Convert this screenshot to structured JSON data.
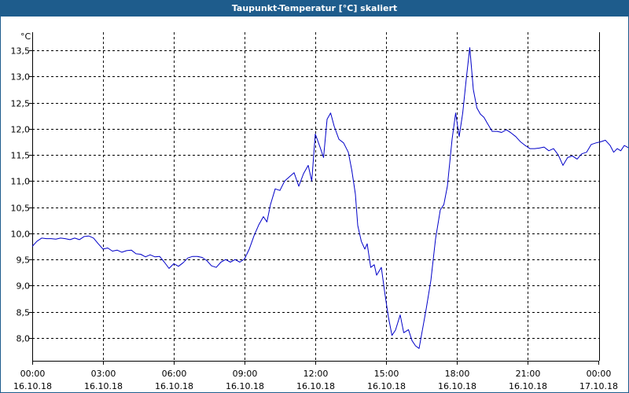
{
  "window": {
    "title": "Taupunkt-Temperatur [°C] skaliert",
    "title_bar_color": "#1e5c8c"
  },
  "chart_data": {
    "type": "line",
    "title": "Taupunkt-Temperatur [°C] skaliert",
    "ylabel": "°C",
    "xlabel": "",
    "ylim": [
      7.6,
      14.0
    ],
    "xlim": [
      "2018-10-16T00:00",
      "2018-10-17T00:00"
    ],
    "grid": true,
    "grid_style": "dashed",
    "line_color": "#0000c8",
    "yticks": [
      {
        "value": 8.0,
        "label": "8,0"
      },
      {
        "value": 8.5,
        "label": "8,5"
      },
      {
        "value": 9.0,
        "label": "9,0"
      },
      {
        "value": 9.5,
        "label": "9,5"
      },
      {
        "value": 10.0,
        "label": "10,0"
      },
      {
        "value": 10.5,
        "label": "10,5"
      },
      {
        "value": 11.0,
        "label": "11,0"
      },
      {
        "value": 11.5,
        "label": "11,5"
      },
      {
        "value": 12.0,
        "label": "12,0"
      },
      {
        "value": 12.5,
        "label": "12,5"
      },
      {
        "value": 13.0,
        "label": "13,0"
      },
      {
        "value": 13.5,
        "label": "13,5"
      }
    ],
    "xticks": [
      {
        "time": "00:00",
        "date": "16.10.18"
      },
      {
        "time": "03:00",
        "date": "16.10.18"
      },
      {
        "time": "06:00",
        "date": "16.10.18"
      },
      {
        "time": "09:00",
        "date": "16.10.18"
      },
      {
        "time": "12:00",
        "date": "16.10.18"
      },
      {
        "time": "15:00",
        "date": "16.10.18"
      },
      {
        "time": "18:00",
        "date": "16.10.18"
      },
      {
        "time": "21:00",
        "date": "16.10.18"
      },
      {
        "time": "00:00",
        "date": "17.10.18"
      }
    ],
    "series": [
      {
        "x_unit": "hours since 16.10.18 00:00",
        "points": [
          [
            0.0,
            9.75
          ],
          [
            0.2,
            9.85
          ],
          [
            0.4,
            9.91
          ],
          [
            0.6,
            9.9
          ],
          [
            0.8,
            9.9
          ],
          [
            1.0,
            9.89
          ],
          [
            1.2,
            9.91
          ],
          [
            1.4,
            9.9
          ],
          [
            1.6,
            9.88
          ],
          [
            1.8,
            9.91
          ],
          [
            2.0,
            9.88
          ],
          [
            2.2,
            9.94
          ],
          [
            2.4,
            9.95
          ],
          [
            2.6,
            9.91
          ],
          [
            2.8,
            9.8
          ],
          [
            3.0,
            9.7
          ],
          [
            3.2,
            9.72
          ],
          [
            3.4,
            9.66
          ],
          [
            3.6,
            9.68
          ],
          [
            3.8,
            9.64
          ],
          [
            4.0,
            9.67
          ],
          [
            4.2,
            9.68
          ],
          [
            4.4,
            9.61
          ],
          [
            4.6,
            9.6
          ],
          [
            4.8,
            9.55
          ],
          [
            5.0,
            9.59
          ],
          [
            5.2,
            9.55
          ],
          [
            5.4,
            9.56
          ],
          [
            5.6,
            9.45
          ],
          [
            5.8,
            9.33
          ],
          [
            6.0,
            9.42
          ],
          [
            6.2,
            9.37
          ],
          [
            6.4,
            9.44
          ],
          [
            6.6,
            9.53
          ],
          [
            6.8,
            9.56
          ],
          [
            7.0,
            9.56
          ],
          [
            7.2,
            9.54
          ],
          [
            7.4,
            9.48
          ],
          [
            7.6,
            9.38
          ],
          [
            7.8,
            9.35
          ],
          [
            8.0,
            9.45
          ],
          [
            8.2,
            9.5
          ],
          [
            8.4,
            9.45
          ],
          [
            8.6,
            9.5
          ],
          [
            8.8,
            9.45
          ],
          [
            9.0,
            9.51
          ],
          [
            9.2,
            9.7
          ],
          [
            9.4,
            9.95
          ],
          [
            9.6,
            10.16
          ],
          [
            9.8,
            10.32
          ],
          [
            9.95,
            10.22
          ],
          [
            10.1,
            10.55
          ],
          [
            10.3,
            10.85
          ],
          [
            10.5,
            10.82
          ],
          [
            10.7,
            11.0
          ],
          [
            10.9,
            11.08
          ],
          [
            11.1,
            11.16
          ],
          [
            11.3,
            10.9
          ],
          [
            11.5,
            11.14
          ],
          [
            11.7,
            11.3
          ],
          [
            11.85,
            11.0
          ],
          [
            12.0,
            11.9
          ],
          [
            12.2,
            11.65
          ],
          [
            12.35,
            11.45
          ],
          [
            12.5,
            12.18
          ],
          [
            12.65,
            12.3
          ],
          [
            12.8,
            12.05
          ],
          [
            13.0,
            11.8
          ],
          [
            13.2,
            11.73
          ],
          [
            13.4,
            11.55
          ],
          [
            13.55,
            11.2
          ],
          [
            13.7,
            10.75
          ],
          [
            13.8,
            10.15
          ],
          [
            13.95,
            9.85
          ],
          [
            14.1,
            9.7
          ],
          [
            14.2,
            9.8
          ],
          [
            14.35,
            9.35
          ],
          [
            14.5,
            9.4
          ],
          [
            14.6,
            9.2
          ],
          [
            14.8,
            9.35
          ],
          [
            14.95,
            8.85
          ],
          [
            15.1,
            8.4
          ],
          [
            15.25,
            8.05
          ],
          [
            15.4,
            8.15
          ],
          [
            15.6,
            8.44
          ],
          [
            15.75,
            8.1
          ],
          [
            15.95,
            8.16
          ],
          [
            16.1,
            7.95
          ],
          [
            16.25,
            7.85
          ],
          [
            16.4,
            7.8
          ],
          [
            16.5,
            8.05
          ],
          [
            16.7,
            8.55
          ],
          [
            16.9,
            9.1
          ],
          [
            17.1,
            9.9
          ],
          [
            17.3,
            10.45
          ],
          [
            17.45,
            10.55
          ],
          [
            17.6,
            10.9
          ],
          [
            17.8,
            11.8
          ],
          [
            17.95,
            12.3
          ],
          [
            18.1,
            11.85
          ],
          [
            18.25,
            12.3
          ],
          [
            18.4,
            12.95
          ],
          [
            18.55,
            13.55
          ],
          [
            18.7,
            12.75
          ],
          [
            18.85,
            12.4
          ],
          [
            19.0,
            12.28
          ],
          [
            19.15,
            12.22
          ],
          [
            19.3,
            12.1
          ],
          [
            19.5,
            11.95
          ],
          [
            19.7,
            11.95
          ],
          [
            19.9,
            11.93
          ],
          [
            20.1,
            11.98
          ],
          [
            20.3,
            11.92
          ],
          [
            20.5,
            11.85
          ],
          [
            20.7,
            11.75
          ],
          [
            20.9,
            11.68
          ],
          [
            21.1,
            11.62
          ],
          [
            21.3,
            11.62
          ],
          [
            21.5,
            11.63
          ],
          [
            21.7,
            11.65
          ],
          [
            21.9,
            11.58
          ],
          [
            22.1,
            11.62
          ],
          [
            22.3,
            11.5
          ],
          [
            22.5,
            11.3
          ],
          [
            22.7,
            11.45
          ],
          [
            22.9,
            11.48
          ],
          [
            23.1,
            11.42
          ],
          [
            23.3,
            11.52
          ],
          [
            23.5,
            11.55
          ],
          [
            23.7,
            11.7
          ],
          [
            23.9,
            11.73
          ],
          [
            24.1,
            11.75
          ],
          [
            24.3,
            11.78
          ],
          [
            24.5,
            11.68
          ],
          [
            24.65,
            11.55
          ],
          [
            24.8,
            11.62
          ],
          [
            24.95,
            11.58
          ],
          [
            25.1,
            11.68
          ],
          [
            25.3,
            11.63
          ],
          [
            25.5,
            11.65
          ],
          [
            25.75,
            11.72
          ]
        ]
      }
    ]
  }
}
